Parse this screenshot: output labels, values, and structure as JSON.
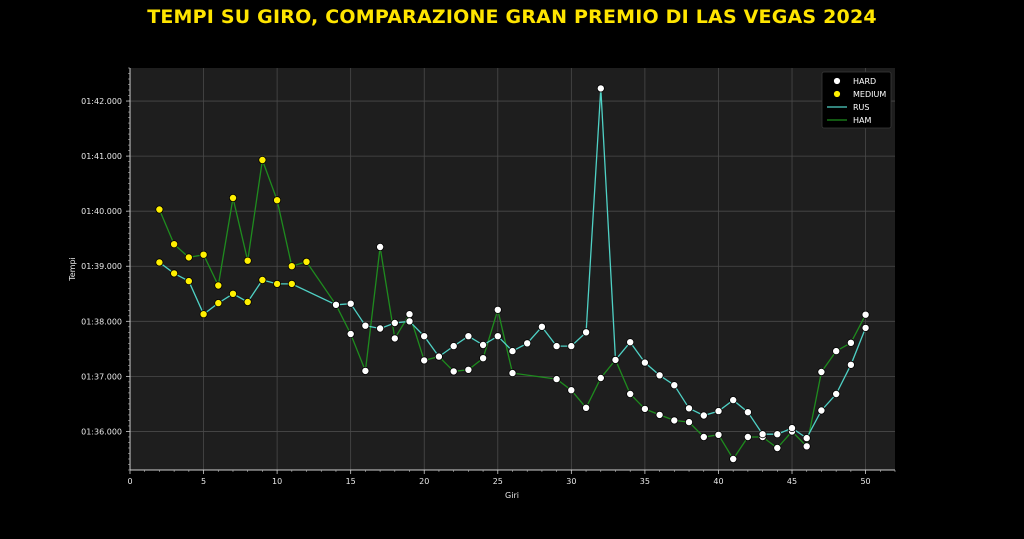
{
  "chart_data": {
    "type": "line",
    "title": "TEMPI SU GIRO, COMPARAZIONE GRAN PREMIO DI LAS VEGAS 2024",
    "xlabel": "Giri",
    "ylabel": "Tempi",
    "xlim": [
      0,
      52
    ],
    "ylim": [
      95.3,
      102.6
    ],
    "x_ticks": [
      0,
      5,
      10,
      15,
      20,
      25,
      30,
      35,
      40,
      45,
      50
    ],
    "y_ticks": [
      96,
      97,
      98,
      99,
      100,
      101,
      102
    ],
    "y_tick_labels": [
      "01:36.000",
      "01:37.000",
      "01:38.000",
      "01:39.000",
      "01:40.000",
      "01:41.000",
      "01:42.000"
    ],
    "grid": true,
    "legend_position": "top-right",
    "colors": {
      "background": "#000000",
      "plot_background": "#1e1e1e",
      "grid": "#4a4a4a",
      "title": "#FFE500",
      "hard": "#ffffff",
      "medium": "#FFF000",
      "rus": "#4fd1c5",
      "ham": "#1e8c1e"
    },
    "legend": [
      {
        "key": "hard",
        "label": "HARD",
        "kind": "marker"
      },
      {
        "key": "medium",
        "label": "MEDIUM",
        "kind": "marker"
      },
      {
        "key": "rus",
        "label": "RUS",
        "kind": "line"
      },
      {
        "key": "ham",
        "label": "HAM",
        "kind": "line"
      }
    ],
    "series": [
      {
        "name": "RUS",
        "key": "rus",
        "points": [
          [
            2,
            99.07,
            "medium"
          ],
          [
            3,
            98.87,
            "medium"
          ],
          [
            4,
            98.73,
            "medium"
          ],
          [
            5,
            98.13,
            "medium"
          ],
          [
            6,
            98.33,
            "medium"
          ],
          [
            7,
            98.5,
            "medium"
          ],
          [
            8,
            98.35,
            "medium"
          ],
          [
            9,
            98.75,
            "medium"
          ],
          [
            10,
            98.68,
            "medium"
          ],
          [
            11,
            98.68,
            "medium"
          ],
          [
            14,
            98.3,
            "hard"
          ],
          [
            15,
            98.32,
            "hard"
          ],
          [
            16,
            97.92,
            "hard"
          ],
          [
            17,
            97.87,
            "hard"
          ],
          [
            18,
            97.97,
            "hard"
          ],
          [
            19,
            98.0,
            "hard"
          ],
          [
            20,
            97.73,
            "hard"
          ],
          [
            21,
            97.36,
            "hard"
          ],
          [
            22,
            97.55,
            "hard"
          ],
          [
            23,
            97.73,
            "hard"
          ],
          [
            24,
            97.57,
            "hard"
          ],
          [
            25,
            97.73,
            "hard"
          ],
          [
            26,
            97.46,
            "hard"
          ],
          [
            27,
            97.6,
            "hard"
          ],
          [
            28,
            97.9,
            "hard"
          ],
          [
            29,
            97.55,
            "hard"
          ],
          [
            30,
            97.55,
            "hard"
          ],
          [
            31,
            97.8,
            "hard"
          ],
          [
            32,
            102.23,
            "hard"
          ],
          [
            33,
            97.3,
            "hard"
          ],
          [
            34,
            97.62,
            "hard"
          ],
          [
            35,
            97.25,
            "hard"
          ],
          [
            36,
            97.02,
            "hard"
          ],
          [
            37,
            96.84,
            "hard"
          ],
          [
            38,
            96.42,
            "hard"
          ],
          [
            39,
            96.29,
            "hard"
          ],
          [
            40,
            96.37,
            "hard"
          ],
          [
            41,
            96.57,
            "hard"
          ],
          [
            42,
            96.35,
            "hard"
          ],
          [
            43,
            95.95,
            "hard"
          ],
          [
            44,
            95.95,
            "hard"
          ],
          [
            45,
            96.06,
            "hard"
          ],
          [
            46,
            95.88,
            "hard"
          ],
          [
            47,
            96.38,
            "hard"
          ],
          [
            48,
            96.68,
            "hard"
          ],
          [
            49,
            97.21,
            "hard"
          ],
          [
            50,
            97.88,
            "hard"
          ]
        ]
      },
      {
        "name": "HAM",
        "key": "ham",
        "points": [
          [
            2,
            100.03,
            "medium"
          ],
          [
            3,
            99.4,
            "medium"
          ],
          [
            4,
            99.16,
            "medium"
          ],
          [
            5,
            99.21,
            "medium"
          ],
          [
            6,
            98.65,
            "medium"
          ],
          [
            7,
            100.24,
            "medium"
          ],
          [
            8,
            99.1,
            "medium"
          ],
          [
            9,
            100.93,
            "medium"
          ],
          [
            10,
            100.2,
            "medium"
          ],
          [
            11,
            99.0,
            "medium"
          ],
          [
            12,
            99.08,
            "medium"
          ],
          [
            14,
            98.3,
            "hard"
          ],
          [
            15,
            97.77,
            "hard"
          ],
          [
            16,
            97.1,
            "hard"
          ],
          [
            17,
            99.35,
            "hard"
          ],
          [
            18,
            97.69,
            "hard"
          ],
          [
            19,
            98.13,
            "hard"
          ],
          [
            20,
            97.29,
            "hard"
          ],
          [
            21,
            97.36,
            "hard"
          ],
          [
            22,
            97.09,
            "hard"
          ],
          [
            23,
            97.12,
            "hard"
          ],
          [
            24,
            97.33,
            "hard"
          ],
          [
            25,
            98.21,
            "hard"
          ],
          [
            26,
            97.06,
            "hard"
          ],
          [
            29,
            96.95,
            "hard"
          ],
          [
            30,
            96.75,
            "hard"
          ],
          [
            31,
            96.43,
            "hard"
          ],
          [
            32,
            96.97,
            "hard"
          ],
          [
            33,
            97.3,
            "hard"
          ],
          [
            34,
            96.68,
            "hard"
          ],
          [
            35,
            96.41,
            "hard"
          ],
          [
            36,
            96.3,
            "hard"
          ],
          [
            37,
            96.2,
            "hard"
          ],
          [
            38,
            96.17,
            "hard"
          ],
          [
            39,
            95.9,
            "hard"
          ],
          [
            40,
            95.94,
            "hard"
          ],
          [
            41,
            95.5,
            "hard"
          ],
          [
            42,
            95.9,
            "hard"
          ],
          [
            43,
            95.9,
            "hard"
          ],
          [
            44,
            95.7,
            "hard"
          ],
          [
            45,
            96.0,
            "hard"
          ],
          [
            46,
            95.73,
            "hard"
          ],
          [
            47,
            97.08,
            "hard"
          ],
          [
            48,
            97.46,
            "hard"
          ],
          [
            49,
            97.61,
            "hard"
          ],
          [
            50,
            98.12,
            "hard"
          ]
        ]
      }
    ]
  }
}
